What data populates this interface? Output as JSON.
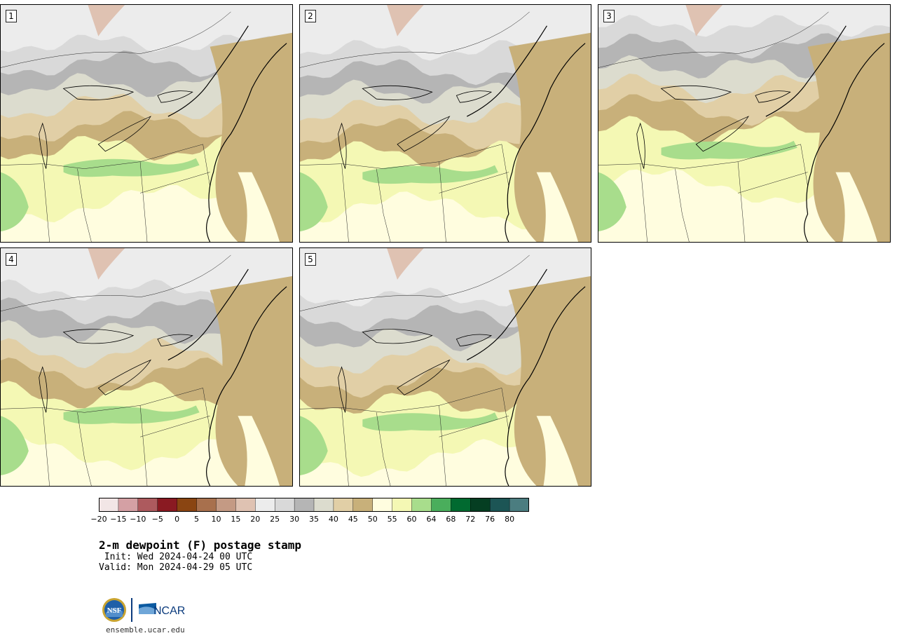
{
  "panels": [
    {
      "label": "1"
    },
    {
      "label": "2"
    },
    {
      "label": "3"
    },
    {
      "label": "4"
    },
    {
      "label": "5"
    }
  ],
  "colorbar": {
    "colors": [
      "#f2e6e6",
      "#d4a0a4",
      "#ad5a5e",
      "#8a1a22",
      "#8a4512",
      "#a8704d",
      "#c49a84",
      "#dfc2b2",
      "#ececec",
      "#d9d9d9",
      "#b5b5b5",
      "#dcdcce",
      "#e1cfa6",
      "#c8b07a",
      "#fffddf",
      "#f4f8b4",
      "#a8dd8c",
      "#4aae5c",
      "#016a30",
      "#053e22",
      "#1c5555",
      "#4b7d80"
    ],
    "ticks": [
      "−20",
      "−15",
      "−10",
      "−5",
      "0",
      "5",
      "10",
      "15",
      "20",
      "25",
      "30",
      "35",
      "40",
      "45",
      "50",
      "55",
      "60",
      "64",
      "68",
      "72",
      "76",
      "80"
    ]
  },
  "title": "2-m dewpoint (F) postage stamp",
  "init": " Init: Wed 2024-04-24 00 UTC",
  "valid": "Valid: Mon 2024-04-29 05 UTC",
  "logos": {
    "nsf": "NSF",
    "ncar": "NCAR"
  },
  "url": "ensemble.ucar.edu"
}
